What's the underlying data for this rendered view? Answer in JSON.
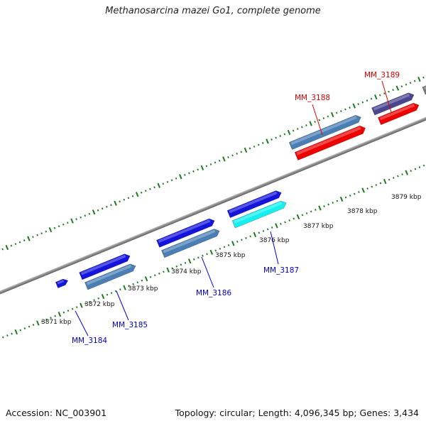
{
  "title": "Methanosarcina mazei Go1, complete genome",
  "footer": {
    "accession": "Accession: NC_003901",
    "summary": "Topology: circular; Length: 4,096,345 bp; Genes: 3,434"
  },
  "colors": {
    "backbone": "#8a8a8a",
    "tick": "#1e7a1e",
    "forward_label": "#dd0000",
    "reverse_label": "#0000cc",
    "blue": "#1414dd",
    "steelblue": "#4a7fb5",
    "red": "#ee0000",
    "purple": "#4a4690",
    "cyan": "#14f0f0",
    "grey": "#777777"
  },
  "kbp_labels": [
    "3871 kbp",
    "3872 kbp",
    "3873 kbp",
    "3874 kbp",
    "3875 kbp",
    "3876 kbp",
    "3877 kbp",
    "3878 kbp",
    "3879 kbp"
  ],
  "gene_labels": [
    {
      "text": "MM_3184",
      "strand": "reverse"
    },
    {
      "text": "MM_3185",
      "strand": "reverse"
    },
    {
      "text": "MM_3186",
      "strand": "reverse"
    },
    {
      "text": "MM_3187",
      "strand": "reverse"
    },
    {
      "text": "MM_3188",
      "strand": "forward"
    },
    {
      "text": "MM_3189",
      "strand": "forward"
    }
  ]
}
